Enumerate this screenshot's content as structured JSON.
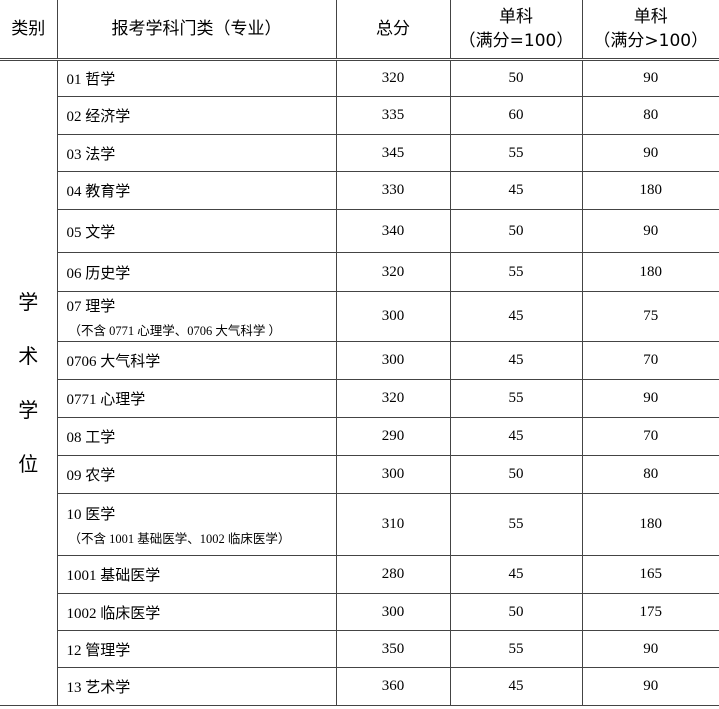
{
  "headers": [
    "类别",
    "报考学科门类（专业）",
    "总分",
    "单科\n（满分=100）",
    "单科\n（满分>100）"
  ],
  "category": [
    "学",
    "术",
    "学",
    "位"
  ],
  "rows": [
    {
      "name": "01 哲学",
      "note": "",
      "total": "320",
      "s100": "50",
      "s100plus": "90"
    },
    {
      "name": "02 经济学",
      "note": "",
      "total": "335",
      "s100": "60",
      "s100plus": "80"
    },
    {
      "name": "03 法学",
      "note": "",
      "total": "345",
      "s100": "55",
      "s100plus": "90"
    },
    {
      "name": "04 教育学",
      "note": "",
      "total": "330",
      "s100": "45",
      "s100plus": "180"
    },
    {
      "name": "05 文学",
      "note": "",
      "total": "340",
      "s100": "50",
      "s100plus": "90"
    },
    {
      "name": "06 历史学",
      "note": "",
      "total": "320",
      "s100": "55",
      "s100plus": "180"
    },
    {
      "name": "07 理学",
      "note": "（不含 0771 心理学、0706 大气科学 ）",
      "total": "300",
      "s100": "45",
      "s100plus": "75"
    },
    {
      "name": "0706 大气科学",
      "note": "",
      "total": "300",
      "s100": "45",
      "s100plus": "70"
    },
    {
      "name": "0771 心理学",
      "note": "",
      "total": "320",
      "s100": "55",
      "s100plus": "90"
    },
    {
      "name": "08 工学",
      "note": "",
      "total": "290",
      "s100": "45",
      "s100plus": "70"
    },
    {
      "name": "09 农学",
      "note": "",
      "total": "300",
      "s100": "50",
      "s100plus": "80"
    },
    {
      "name": "10 医学",
      "note": "（不含 1001 基础医学、1002 临床医学）",
      "total": "310",
      "s100": "55",
      "s100plus": "180"
    },
    {
      "name": "1001 基础医学",
      "note": "",
      "total": "280",
      "s100": "45",
      "s100plus": "165"
    },
    {
      "name": "1002 临床医学",
      "note": "",
      "total": "300",
      "s100": "50",
      "s100plus": "175"
    },
    {
      "name": "12 管理学",
      "note": "",
      "total": "350",
      "s100": "55",
      "s100plus": "90"
    },
    {
      "name": "13 艺术学",
      "note": "",
      "total": "360",
      "s100": "45",
      "s100plus": "90"
    }
  ]
}
